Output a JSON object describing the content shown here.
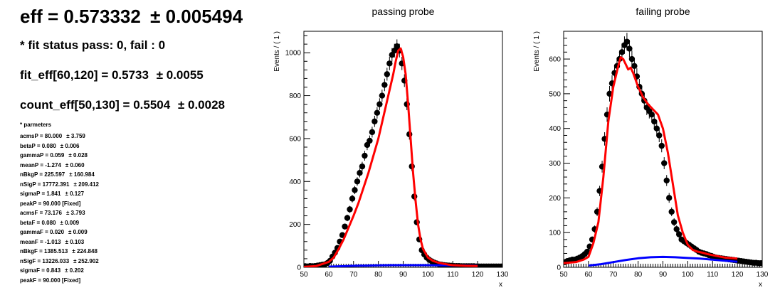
{
  "summary": {
    "eff": "eff = 0.573332",
    "eff_err": "± 0.005494",
    "fit_status": "* fit status pass: 0, fail : 0",
    "fit_eff": "fit_eff[60,120] = 0.5733",
    "fit_eff_err": "± 0.0055",
    "count_eff": "count_eff[50,130] = 0.5504",
    "count_eff_err": "± 0.0028",
    "params_header": "* parmeters",
    "params": [
      {
        "name": "acmsP = 80.000",
        "err": "± 3.759"
      },
      {
        "name": "betaP = 0.080",
        "err": "± 0.006"
      },
      {
        "name": "gammaP = 0.059",
        "err": "± 0.028"
      },
      {
        "name": "meanP = -1.274",
        "err": "± 0.060"
      },
      {
        "name": "nBkgP = 225.597",
        "err": "± 160.984"
      },
      {
        "name": "nSigP = 17772.391",
        "err": "± 209.412"
      },
      {
        "name": "sigmaP = 1.841",
        "err": "± 0.127"
      },
      {
        "name": "peakP = 90.000 [Fixed]",
        "err": ""
      },
      {
        "name": "acmsF = 73.176",
        "err": "± 3.793"
      },
      {
        "name": "betaF = 0.080",
        "err": "± 0.009"
      },
      {
        "name": "gammaF = 0.020",
        "err": "± 0.009"
      },
      {
        "name": "meanF = -1.013",
        "err": "± 0.103"
      },
      {
        "name": "nBkgF = 1385.513",
        "err": "± 224.848"
      },
      {
        "name": "nSigF = 13226.033",
        "err": "± 252.902"
      },
      {
        "name": "sigmaF = 0.843",
        "err": "± 0.202"
      },
      {
        "name": "peakF = 90.000 [Fixed]",
        "err": ""
      }
    ]
  },
  "chart_data": [
    {
      "type": "scatter",
      "title": "passing probe",
      "xlabel": "x",
      "ylabel": "Events / ( 1 )",
      "xlim": [
        50,
        130
      ],
      "ylim": [
        0,
        1100
      ],
      "xticks": [
        50,
        60,
        70,
        80,
        90,
        100,
        110,
        120,
        130
      ],
      "yticks": [
        0,
        200,
        400,
        600,
        800,
        1000
      ],
      "grid": false,
      "data_color": "#000000",
      "total_color": "#ff0000",
      "bkg_color": "#0000ff",
      "data_x": [
        50,
        51,
        52,
        53,
        54,
        55,
        56,
        57,
        58,
        59,
        60,
        61,
        62,
        63,
        64,
        65,
        66,
        67,
        68,
        69,
        70,
        71,
        72,
        73,
        74,
        75,
        76,
        77,
        78,
        79,
        80,
        81,
        82,
        83,
        84,
        85,
        86,
        87,
        88,
        89,
        90,
        91,
        92,
        93,
        94,
        95,
        96,
        97,
        98,
        99,
        100,
        101,
        102,
        103,
        104,
        105,
        106,
        107,
        108,
        109,
        110,
        111,
        112,
        113,
        114,
        115,
        116,
        117,
        118,
        119,
        120,
        121,
        122,
        123,
        124,
        125,
        126,
        127,
        128,
        129
      ],
      "data_y": [
        5,
        4,
        6,
        5,
        6,
        8,
        10,
        12,
        14,
        20,
        30,
        50,
        68,
        90,
        120,
        150,
        190,
        230,
        270,
        320,
        360,
        400,
        440,
        470,
        520,
        570,
        590,
        630,
        680,
        720,
        760,
        800,
        850,
        900,
        950,
        990,
        1010,
        1030,
        1010,
        950,
        870,
        760,
        620,
        470,
        330,
        210,
        130,
        80,
        60,
        45,
        35,
        28,
        22,
        18,
        14,
        12,
        10,
        9,
        8,
        7,
        6,
        6,
        6,
        5,
        5,
        5,
        5,
        5,
        5,
        4,
        4,
        4,
        4,
        4,
        4,
        4,
        4,
        4,
        4,
        4
      ],
      "total_x": [
        50,
        55,
        60,
        62,
        64,
        66,
        68,
        70,
        72,
        74,
        76,
        78,
        80,
        82,
        84,
        86,
        87,
        88,
        89,
        90,
        91,
        92,
        93,
        94,
        95,
        96,
        97,
        98,
        100,
        102,
        104,
        106,
        108,
        110,
        115,
        120
      ],
      "total_y": [
        2,
        6,
        25,
        45,
        85,
        130,
        185,
        240,
        300,
        370,
        440,
        520,
        600,
        700,
        800,
        900,
        960,
        1010,
        1020,
        980,
        900,
        760,
        600,
        440,
        310,
        200,
        130,
        85,
        45,
        30,
        22,
        17,
        13,
        10,
        7,
        6
      ],
      "bkg_x": [
        60,
        65,
        70,
        75,
        80,
        85,
        90,
        95,
        100,
        105,
        110,
        115,
        120
      ],
      "bkg_y": [
        3,
        5,
        7,
        8,
        9,
        10,
        10,
        10,
        10,
        9,
        9,
        8,
        7
      ]
    },
    {
      "type": "scatter",
      "title": "failing probe",
      "xlabel": "x",
      "ylabel": "Events / ( 1 )",
      "xlim": [
        50,
        130
      ],
      "ylim": [
        0,
        680
      ],
      "xticks": [
        50,
        60,
        70,
        80,
        90,
        100,
        110,
        120,
        130
      ],
      "yticks": [
        0,
        100,
        200,
        300,
        400,
        500,
        600
      ],
      "grid": false,
      "data_color": "#000000",
      "total_color": "#ff0000",
      "bkg_color": "#0000ff",
      "data_x": [
        50,
        51,
        52,
        53,
        54,
        55,
        56,
        57,
        58,
        59,
        60,
        61,
        62,
        63,
        64,
        65,
        66,
        67,
        68,
        69,
        70,
        71,
        72,
        73,
        74,
        75,
        76,
        77,
        78,
        79,
        80,
        81,
        82,
        83,
        84,
        85,
        86,
        87,
        88,
        89,
        90,
        91,
        92,
        93,
        94,
        95,
        96,
        97,
        98,
        99,
        100,
        101,
        102,
        103,
        104,
        105,
        106,
        107,
        108,
        109,
        110,
        111,
        112,
        113,
        114,
        115,
        116,
        117,
        118,
        119,
        120,
        121,
        122,
        123,
        124,
        125,
        126,
        127,
        128,
        129
      ],
      "data_y": [
        15,
        18,
        20,
        22,
        22,
        25,
        28,
        32,
        38,
        45,
        60,
        80,
        110,
        160,
        220,
        290,
        370,
        440,
        500,
        530,
        560,
        580,
        600,
        620,
        640,
        650,
        630,
        600,
        580,
        550,
        520,
        500,
        480,
        460,
        450,
        440,
        420,
        400,
        380,
        350,
        300,
        250,
        200,
        160,
        130,
        110,
        95,
        80,
        75,
        70,
        65,
        60,
        55,
        50,
        45,
        42,
        40,
        38,
        35,
        33,
        30,
        28,
        27,
        26,
        25,
        24,
        23,
        22,
        21,
        20,
        19,
        18,
        17,
        16,
        15,
        14,
        13,
        13,
        12,
        12
      ],
      "total_x": [
        50,
        55,
        58,
        60,
        62,
        64,
        66,
        68,
        70,
        72,
        73,
        74,
        75,
        76,
        77,
        78,
        80,
        82,
        84,
        86,
        88,
        90,
        92,
        94,
        96,
        98,
        100,
        102,
        104,
        106,
        108,
        110,
        115,
        120
      ],
      "total_y": [
        12,
        15,
        22,
        30,
        70,
        130,
        260,
        420,
        520,
        580,
        605,
        600,
        585,
        570,
        575,
        560,
        520,
        490,
        470,
        455,
        440,
        400,
        330,
        240,
        150,
        100,
        65,
        50,
        45,
        42,
        38,
        35,
        28,
        25
      ],
      "bkg_x": [
        60,
        65,
        70,
        75,
        80,
        85,
        90,
        95,
        100,
        105,
        110,
        115,
        120
      ],
      "bkg_y": [
        5,
        9,
        15,
        21,
        26,
        29,
        30,
        29,
        27,
        25,
        22,
        19,
        16
      ]
    }
  ]
}
